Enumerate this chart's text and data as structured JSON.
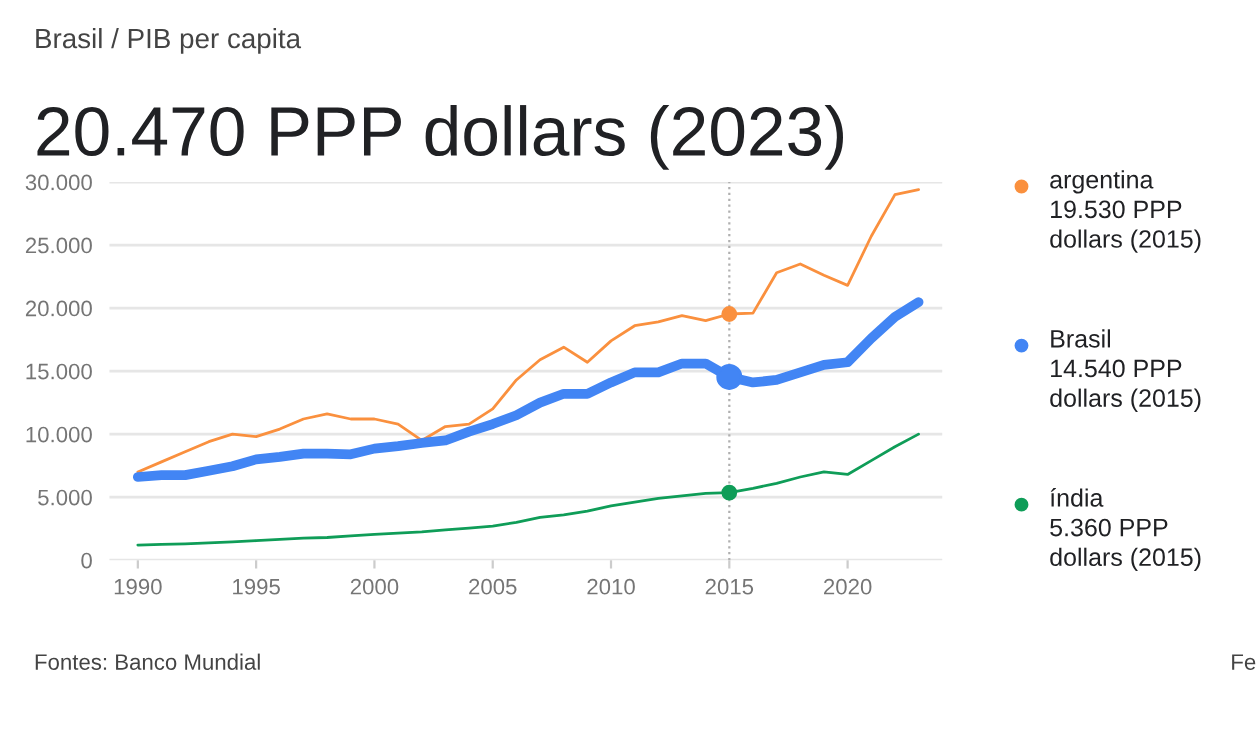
{
  "chart_data": {
    "type": "line",
    "subtitle": "Brasil / PIB per capita",
    "title": "20.470 PPP dollars (2023)",
    "x": [
      1990,
      1991,
      1992,
      1993,
      1994,
      1995,
      1996,
      1997,
      1998,
      1999,
      2000,
      2001,
      2002,
      2003,
      2004,
      2005,
      2006,
      2007,
      2008,
      2009,
      2010,
      2011,
      2012,
      2013,
      2014,
      2015,
      2016,
      2017,
      2018,
      2019,
      2020,
      2021,
      2022,
      2023
    ],
    "series": [
      {
        "name": "argentina",
        "color": "#fa903e",
        "values": [
          7000,
          7800,
          8600,
          9400,
          10000,
          9800,
          10400,
          11200,
          11600,
          11200,
          11200,
          10800,
          9500,
          10600,
          10800,
          12000,
          14300,
          15900,
          16900,
          15700,
          17400,
          18600,
          18900,
          19400,
          19000,
          19530,
          19600,
          22800,
          23500,
          22600,
          21800,
          25700,
          29000,
          29400
        ]
      },
      {
        "name": "Brasil",
        "color": "#4285f4",
        "values": [
          6600,
          6750,
          6750,
          7100,
          7450,
          8000,
          8200,
          8450,
          8450,
          8400,
          8850,
          9050,
          9300,
          9500,
          10200,
          10800,
          11500,
          12500,
          13200,
          13200,
          14100,
          14900,
          14900,
          15600,
          15600,
          14540,
          14100,
          14300,
          14900,
          15500,
          15700,
          17600,
          19300,
          20470
        ]
      },
      {
        "name": "índia",
        "color": "#0f9d58",
        "values": [
          1200,
          1250,
          1300,
          1380,
          1450,
          1550,
          1650,
          1750,
          1800,
          1920,
          2050,
          2150,
          2250,
          2400,
          2550,
          2700,
          3000,
          3400,
          3600,
          3900,
          4300,
          4600,
          4900,
          5100,
          5300,
          5360,
          5700,
          6100,
          6600,
          7000,
          6800,
          7900,
          9000,
          10000
        ]
      }
    ],
    "xlim": [
      1988.8,
      2024
    ],
    "xticks": [
      1990,
      1995,
      2000,
      2005,
      2010,
      2015,
      2020
    ],
    "ylim": [
      0,
      30000
    ],
    "yticks": [
      0,
      {
        "value": 5000,
        "label": "5.000"
      },
      {
        "value": 10000,
        "label": "10.000"
      },
      {
        "value": 15000,
        "label": "15.000"
      },
      {
        "value": 20000,
        "label": "20.000"
      },
      {
        "value": 25000,
        "label": "25.000"
      },
      {
        "value": 30000,
        "label": "30.000"
      }
    ],
    "grid": "y",
    "legend": "right",
    "ref_lines": [
      {
        "axis": "x",
        "value": 2015,
        "color": "#b0b0b0",
        "line_style": "dotted"
      }
    ],
    "annotations": [
      "19.530 PPP dollars (2015)",
      "14.540 PPP dollars (2015)",
      "5.360 PPP dollars (2015)",
      "Fontes: Banco Mundial",
      "Fe"
    ]
  }
}
